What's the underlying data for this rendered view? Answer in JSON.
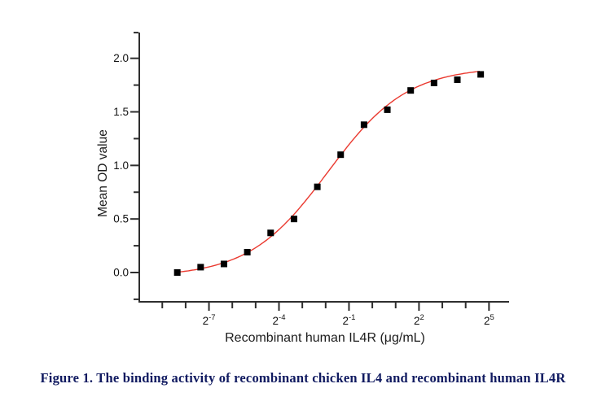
{
  "figure": {
    "caption": "Figure 1. The binding activity of recombinant chicken IL4 and recombinant human IL4R",
    "caption_color": "#101a60",
    "background_color": "#ffffff"
  },
  "chart_data": {
    "type": "scatter",
    "title": "",
    "xlabel": "Recombinant human IL4R (μg/mL)",
    "ylabel": "Mean OD value",
    "x_scale": "log2",
    "x_unit": "μg/mL",
    "x_ug_per_ml": [
      0.00305,
      0.0061,
      0.0122,
      0.0244,
      0.0488,
      0.0977,
      0.1953,
      0.3906,
      0.7813,
      1.5625,
      3.125,
      6.25,
      12.5,
      25
    ],
    "y_mean_od": [
      0,
      0.05,
      0.08,
      0.19,
      0.37,
      0.5,
      0.8,
      1.1,
      1.38,
      1.52,
      1.7,
      1.77,
      1.8,
      1.85
    ],
    "x_tick_exponents": [
      -9,
      -8,
      -7,
      -6,
      -5,
      -4,
      -3,
      -2,
      -1,
      0,
      1,
      2,
      3,
      4,
      5
    ],
    "x_major_exponents": [
      -7,
      -4,
      -1,
      2,
      5
    ],
    "x_major_tick_labels": [
      {
        "base": "2",
        "sup": "-7"
      },
      {
        "base": "2",
        "sup": "-4"
      },
      {
        "base": "2",
        "sup": "-1"
      },
      {
        "base": "2",
        "sup": "2"
      },
      {
        "base": "2",
        "sup": "5"
      }
    ],
    "y_major_ticks": [
      {
        "value": 0.0,
        "label": "0.0"
      },
      {
        "value": 0.5,
        "label": "0.5"
      },
      {
        "value": 1.0,
        "label": "1.0"
      },
      {
        "value": 1.5,
        "label": "1.5"
      },
      {
        "value": 2.0,
        "label": "2.0"
      }
    ],
    "y_minor_values": [
      -0.25,
      0.25,
      0.75,
      1.25,
      1.75,
      2.24
    ],
    "ylim": [
      -0.27,
      2.26
    ],
    "xlim_log2": [
      -9.95,
      5.86
    ],
    "grid": false,
    "legend": null,
    "fit_curve": {
      "model": "4PL_log2",
      "bottom": -0.04,
      "top": 1.92,
      "ec50_log2": -1.9,
      "hill_slope": 0.85
    },
    "colors": {
      "marker": "#000000",
      "fit_line": "#ea3a30",
      "axis": "#2e2e2e",
      "tick_label": "#111111"
    }
  }
}
